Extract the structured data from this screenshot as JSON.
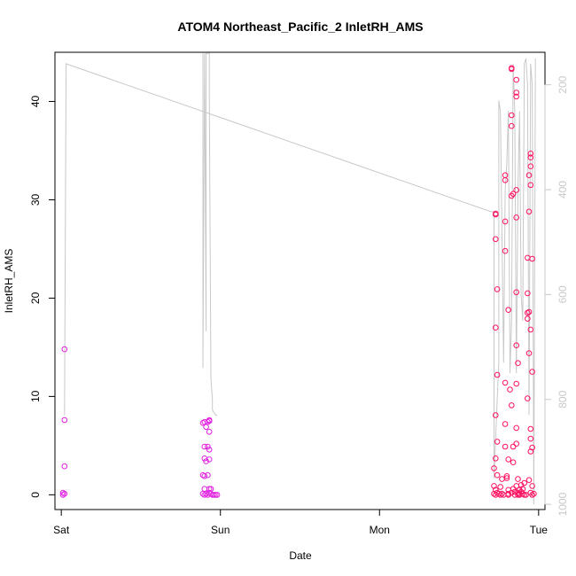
{
  "chart_data": {
    "type": "scatter",
    "title": "ATOM4 Northeast_Pacific_2 InletRH_AMS",
    "xlabel": "Date",
    "ylabel": "InletRH_AMS",
    "x_ticks": [
      "Sat",
      "Sun",
      "Mon",
      "Tue"
    ],
    "x_tick_values": [
      0,
      1,
      2,
      3
    ],
    "xlim": [
      -0.04,
      3.04
    ],
    "y_ticks": [
      0,
      10,
      20,
      30,
      40
    ],
    "ylim": [
      -1.5,
      45
    ],
    "y2_ticks": [
      200,
      400,
      600,
      800,
      1000
    ],
    "y2lim": [
      1010,
      138
    ],
    "grid": false,
    "colors": {
      "point_low": "#e020e0",
      "point_high": "#ff1060",
      "line_right": "#c8c8c8",
      "frame": "#000000"
    },
    "series": [
      {
        "axis": "left",
        "marker": "open-circle",
        "points": [
          [
            0.02,
            14.8
          ],
          [
            0.02,
            7.6
          ],
          [
            0.02,
            2.9
          ],
          [
            0.01,
            0.2
          ],
          [
            0.02,
            0.1
          ],
          [
            0.01,
            0.0
          ],
          [
            0.89,
            7.3
          ],
          [
            0.9,
            7.4
          ],
          [
            0.91,
            6.9
          ],
          [
            0.93,
            7.5
          ],
          [
            0.93,
            7.6
          ],
          [
            0.92,
            7.4
          ],
          [
            0.93,
            6.4
          ],
          [
            0.9,
            4.9
          ],
          [
            0.92,
            4.9
          ],
          [
            0.93,
            4.6
          ],
          [
            0.9,
            3.7
          ],
          [
            0.91,
            3.4
          ],
          [
            0.93,
            3.6
          ],
          [
            0.89,
            2.0
          ],
          [
            0.9,
            1.9
          ],
          [
            0.92,
            2.0
          ],
          [
            0.9,
            0.6
          ],
          [
            0.93,
            0.6
          ],
          [
            0.94,
            0.6
          ],
          [
            0.89,
            0.1
          ],
          [
            0.9,
            0.0
          ],
          [
            0.91,
            0.1
          ],
          [
            0.92,
            0.0
          ],
          [
            0.93,
            0.2
          ],
          [
            0.94,
            0.1
          ],
          [
            0.95,
            0.0
          ],
          [
            0.96,
            0.0
          ],
          [
            0.97,
            0.0
          ],
          [
            0.98,
            0.0
          ],
          [
            2.73,
            28.6
          ],
          [
            2.73,
            28.5
          ],
          [
            2.73,
            26.0
          ],
          [
            2.74,
            20.9
          ],
          [
            2.73,
            17.0
          ],
          [
            2.74,
            12.2
          ],
          [
            2.73,
            8.1
          ],
          [
            2.74,
            5.4
          ],
          [
            2.73,
            3.7
          ],
          [
            2.72,
            2.7
          ],
          [
            2.74,
            2.0
          ],
          [
            2.72,
            0.9
          ],
          [
            2.73,
            0.5
          ],
          [
            2.72,
            0.1
          ],
          [
            2.73,
            0.0
          ],
          [
            2.74,
            0.2
          ],
          [
            2.75,
            0.1
          ],
          [
            2.76,
            0.0
          ],
          [
            2.77,
            0.1
          ],
          [
            2.78,
            0.0
          ],
          [
            2.76,
            0.8
          ],
          [
            2.77,
            1.6
          ],
          [
            2.79,
            32.5
          ],
          [
            2.79,
            32.0
          ],
          [
            2.79,
            27.8
          ],
          [
            2.79,
            24.8
          ],
          [
            2.79,
            11.4
          ],
          [
            2.79,
            7.2
          ],
          [
            2.79,
            4.9
          ],
          [
            2.8,
            1.7
          ],
          [
            2.8,
            1.9
          ],
          [
            2.81,
            18.8
          ],
          [
            2.82,
            10.7
          ],
          [
            2.81,
            3.6
          ],
          [
            2.81,
            0.5
          ],
          [
            2.81,
            0.1
          ],
          [
            2.81,
            0.0
          ],
          [
            2.83,
            43.4
          ],
          [
            2.83,
            43.3
          ],
          [
            2.83,
            38.6
          ],
          [
            2.83,
            37.5
          ],
          [
            2.83,
            30.4
          ],
          [
            2.84,
            30.6
          ],
          [
            2.83,
            9.1
          ],
          [
            2.84,
            4.9
          ],
          [
            2.84,
            3.3
          ],
          [
            2.83,
            0.2
          ],
          [
            2.84,
            0.6
          ],
          [
            2.85,
            0.3
          ],
          [
            2.85,
            0.0
          ],
          [
            2.86,
            42.2
          ],
          [
            2.86,
            40.9
          ],
          [
            2.86,
            40.5
          ],
          [
            2.86,
            31.0
          ],
          [
            2.86,
            28.2
          ],
          [
            2.86,
            20.6
          ],
          [
            2.86,
            15.2
          ],
          [
            2.87,
            13.4
          ],
          [
            2.86,
            11.3
          ],
          [
            2.86,
            6.8
          ],
          [
            2.86,
            5.2
          ],
          [
            2.87,
            1.6
          ],
          [
            2.86,
            0.9
          ],
          [
            2.87,
            0.2
          ],
          [
            2.88,
            0.1
          ],
          [
            2.88,
            0.0
          ],
          [
            2.89,
            0.3
          ],
          [
            2.9,
            0.1
          ],
          [
            2.91,
            0.0
          ],
          [
            2.92,
            0.0
          ],
          [
            2.93,
            20.5
          ],
          [
            2.94,
            18.6
          ],
          [
            2.93,
            18.5
          ],
          [
            2.93,
            17.9
          ],
          [
            2.93,
            9.8
          ],
          [
            2.93,
            24.1
          ],
          [
            2.94,
            28.8
          ],
          [
            2.94,
            14.4
          ],
          [
            2.95,
            34.7
          ],
          [
            2.95,
            34.3
          ],
          [
            2.95,
            33.4
          ],
          [
            2.94,
            32.5
          ],
          [
            2.95,
            31.5
          ],
          [
            2.96,
            24.0
          ],
          [
            2.95,
            16.8
          ],
          [
            2.96,
            12.5
          ],
          [
            2.95,
            6.7
          ],
          [
            2.95,
            5.7
          ],
          [
            2.96,
            4.8
          ],
          [
            2.95,
            4.4
          ],
          [
            2.94,
            1.5
          ],
          [
            2.96,
            0.9
          ],
          [
            2.95,
            0.2
          ],
          [
            2.96,
            0.0
          ],
          [
            2.97,
            0.1
          ],
          [
            2.91,
            1.2
          ],
          [
            2.9,
            0.6
          ],
          [
            2.89,
            1.0
          ],
          [
            2.88,
            0.5
          ],
          [
            2.87,
            0.0
          ]
        ]
      },
      {
        "axis": "right",
        "marker": "line",
        "points": [
          [
            0.02,
            830
          ],
          [
            0.02,
            830
          ],
          [
            0.03,
            160
          ],
          [
            2.7,
            442
          ],
          [
            2.72,
            442
          ],
          [
            2.72,
            950
          ],
          [
            2.74,
            800
          ],
          [
            2.75,
            730
          ],
          [
            2.75,
            230
          ],
          [
            2.76,
            250
          ],
          [
            2.78,
            730
          ],
          [
            2.79,
            400
          ],
          [
            2.8,
            350
          ],
          [
            2.81,
            250
          ],
          [
            2.82,
            750
          ],
          [
            2.83,
            650
          ],
          [
            2.84,
            160
          ],
          [
            2.85,
            250
          ],
          [
            2.86,
            750
          ],
          [
            2.87,
            400
          ],
          [
            2.88,
            250
          ],
          [
            2.89,
            600
          ],
          [
            2.9,
            650
          ],
          [
            2.91,
            160
          ],
          [
            2.92,
            150
          ],
          [
            2.93,
            200
          ],
          [
            2.94,
            830
          ],
          [
            2.95,
            160
          ],
          [
            2.96,
            200
          ],
          [
            2.97,
            1000
          ],
          [
            2.98,
            150
          ]
        ]
      },
      {
        "axis": "right",
        "marker": "line",
        "points": [
          [
            0.89,
            140
          ],
          [
            0.89,
            740
          ],
          [
            0.9,
            140
          ],
          [
            0.91,
            670
          ],
          [
            0.91,
            140
          ],
          [
            0.93,
            140
          ],
          [
            0.93,
            220
          ],
          [
            0.94,
            760
          ],
          [
            0.95,
            800
          ],
          [
            0.95,
            820
          ],
          [
            0.97,
            830
          ],
          [
            0.98,
            830
          ]
        ]
      }
    ]
  }
}
